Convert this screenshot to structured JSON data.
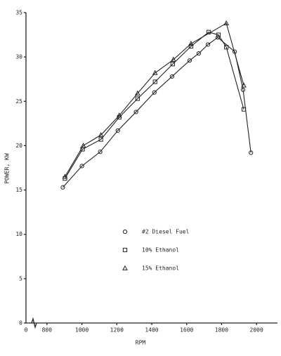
{
  "chart_data": {
    "type": "line",
    "x_label": "RPM",
    "y_label": "POWER, KW",
    "x_origin_label": "0",
    "xlim": [
      680,
      2120
    ],
    "ylim": [
      0,
      35
    ],
    "xticks": [
      800,
      1000,
      1200,
      1400,
      1600,
      1800,
      2000
    ],
    "yticks": [
      0,
      5,
      10,
      15,
      20,
      25,
      30,
      35
    ],
    "series": [
      {
        "name": "#2 Diesel Fuel",
        "marker": "circle",
        "color": "#222222",
        "x": [
          891,
          1000,
          1105,
          1206,
          1310,
          1415,
          1516,
          1617,
          1669,
          1722,
          1778,
          1875,
          1923,
          1968
        ],
        "values": [
          15.3,
          17.7,
          19.3,
          21.7,
          23.8,
          26.0,
          27.8,
          29.6,
          30.4,
          31.4,
          32.2,
          30.6,
          26.3,
          19.2
        ]
      },
      {
        "name": "10% Ethanol",
        "marker": "square",
        "color": "#222222",
        "x": [
          903,
          1004,
          1109,
          1214,
          1319,
          1419,
          1520,
          1625,
          1726,
          1782,
          1827,
          1927
        ],
        "values": [
          16.3,
          19.6,
          20.7,
          23.2,
          25.3,
          27.2,
          29.2,
          31.2,
          32.8,
          32.5,
          31.1,
          24.1
        ]
      },
      {
        "name": "15% Ethanol",
        "marker": "triangle",
        "color": "#222222",
        "x": [
          903,
          1008,
          1109,
          1214,
          1319,
          1419,
          1524,
          1625,
          1827,
          1927
        ],
        "values": [
          16.5,
          20.0,
          21.2,
          23.4,
          25.9,
          28.2,
          29.7,
          31.5,
          33.8,
          26.8
        ]
      }
    ]
  }
}
